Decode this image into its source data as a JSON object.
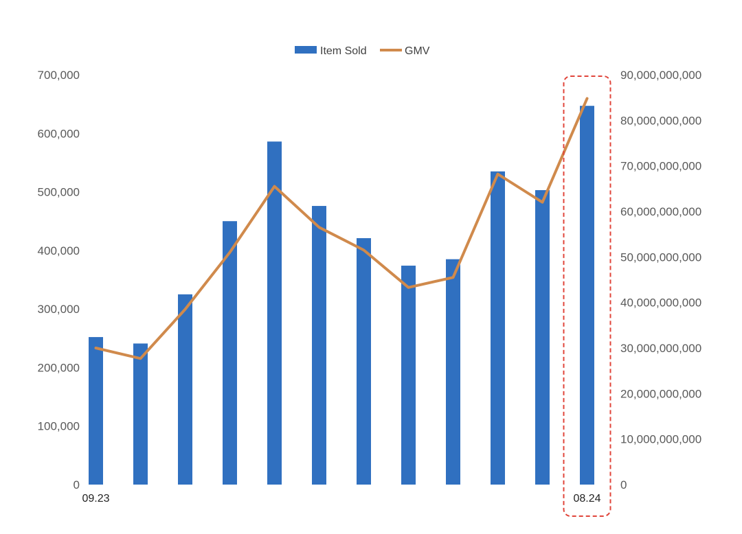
{
  "chart_data": {
    "type": "bar",
    "categories": [
      "09.23",
      "",
      "",
      "",
      "",
      "",
      "",
      "",
      "",
      "",
      "",
      "08.24"
    ],
    "series": [
      {
        "name": "Item Sold",
        "type": "bar",
        "axis": "left",
        "color": "#3070c0",
        "values": [
          252000,
          241000,
          325000,
          450000,
          586000,
          476000,
          421000,
          374000,
          385000,
          535000,
          503000,
          647000
        ]
      },
      {
        "name": "GMV",
        "type": "line",
        "axis": "right",
        "color": "#d08a4c",
        "values": [
          30000000000,
          27700000000,
          38500000000,
          51000000000,
          65500000000,
          56500000000,
          51500000000,
          43300000000,
          45500000000,
          68200000000,
          62000000000,
          84800000000
        ]
      }
    ],
    "y_left": {
      "ylim": [
        0,
        700000
      ],
      "ticks": [
        0,
        100000,
        200000,
        300000,
        400000,
        500000,
        600000,
        700000
      ],
      "tick_labels": [
        "0",
        "100,000",
        "200,000",
        "300,000",
        "400,000",
        "500,000",
        "600,000",
        "700,000"
      ]
    },
    "y_right": {
      "ylim": [
        0,
        90000000000
      ],
      "ticks": [
        0,
        10000000000,
        20000000000,
        30000000000,
        40000000000,
        50000000000,
        60000000000,
        70000000000,
        80000000000,
        90000000000
      ],
      "tick_labels": [
        "0",
        "10,000,000,000",
        "20,000,000,000",
        "30,000,000,000",
        "40,000,000,000",
        "50,000,000,000",
        "60,000,000,000",
        "70,000,000,000",
        "80,000,000,000",
        "90,000,000,000"
      ]
    },
    "grid": false,
    "legend_position": "top-center",
    "highlight": {
      "category_index": 11,
      "style": "dashed-box",
      "color": "#e0443a"
    }
  }
}
